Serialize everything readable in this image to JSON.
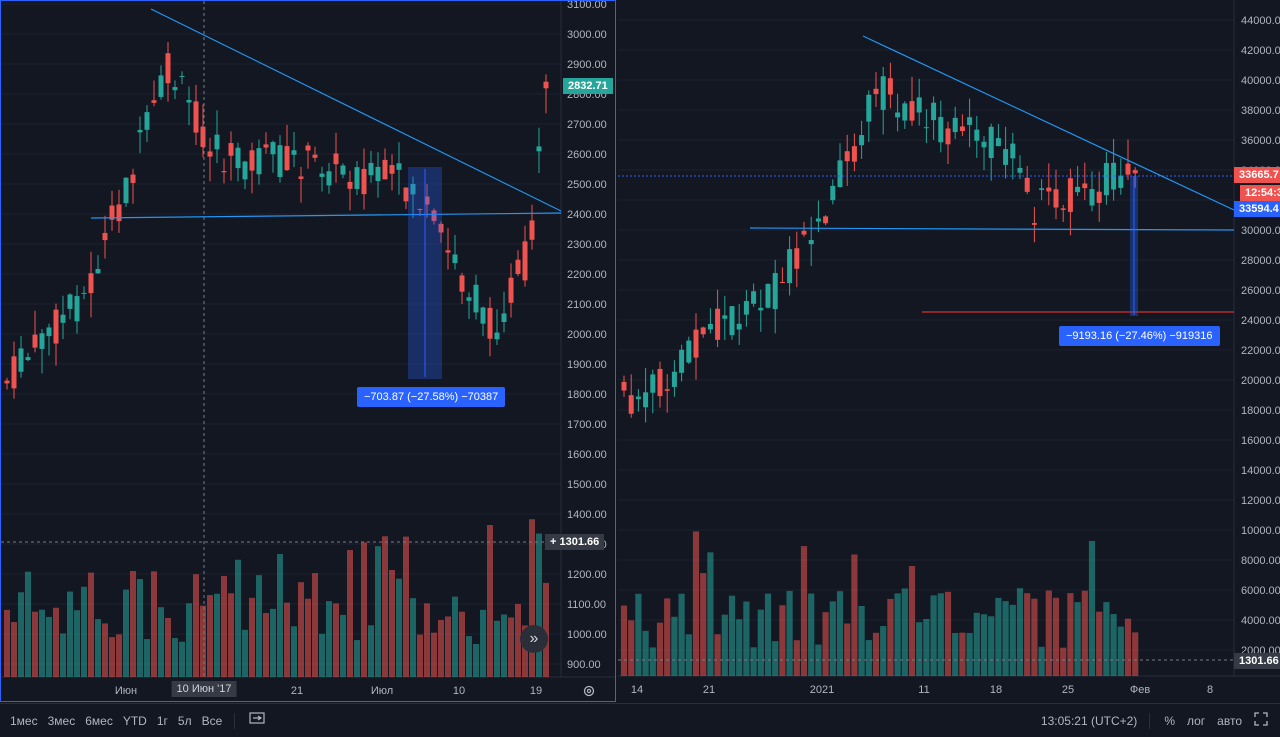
{
  "left_chart": {
    "price_ticks": [
      "3100.00",
      "3000.00",
      "2900.00",
      "2800.00",
      "2700.00",
      "2600.00",
      "2500.00",
      "2400.00",
      "2300.00",
      "2200.00",
      "2100.00",
      "2000.00",
      "1900.00",
      "1800.00",
      "1700.00",
      "1600.00",
      "1500.00",
      "1400.00",
      "1300.00",
      "1200.00",
      "1100.00",
      "1000.00",
      "900.00"
    ],
    "time_labels": [
      "Июн",
      "10 Июн '17",
      "21",
      "Июл",
      "10",
      "19"
    ],
    "last_price_tag": "2832.71",
    "crosshair_tag": "1301.66",
    "measure_label": "−703.87 (−27.58%) −70387",
    "colors": {
      "up": "#26a69a",
      "down": "#ef5350",
      "line": "#2196f3",
      "measure": "#2962ff"
    }
  },
  "right_chart": {
    "price_ticks": [
      "44000.00",
      "42000.00",
      "40000.00",
      "38000.00",
      "36000.00",
      "34000.00",
      "32000.00",
      "30000.00",
      "28000.00",
      "26000.00",
      "24000.00",
      "22000.00",
      "20000.00",
      "18000.00",
      "16000.00",
      "14000.00",
      "12000.00",
      "10000.00",
      "8000.00",
      "6000.00",
      "4000.00",
      "2000.00"
    ],
    "time_labels": [
      "14",
      "21",
      "2021",
      "11",
      "18",
      "25",
      "Фев",
      "8"
    ],
    "price_tag_red": "33665.7",
    "countdown_tag": "12:54:3",
    "price_tag_blue": "33594.4",
    "crosshair_tag": "1301.66",
    "measure_label": "−9193.16 (−27.46%) −919316"
  },
  "bottom_bar": {
    "ranges": [
      "1мес",
      "3мес",
      "6мес",
      "YTD",
      "1г",
      "5л",
      "Все"
    ],
    "clock": "13:05:21 (UTC+2)",
    "percent": "%",
    "log": "лог",
    "auto": "авто"
  }
}
